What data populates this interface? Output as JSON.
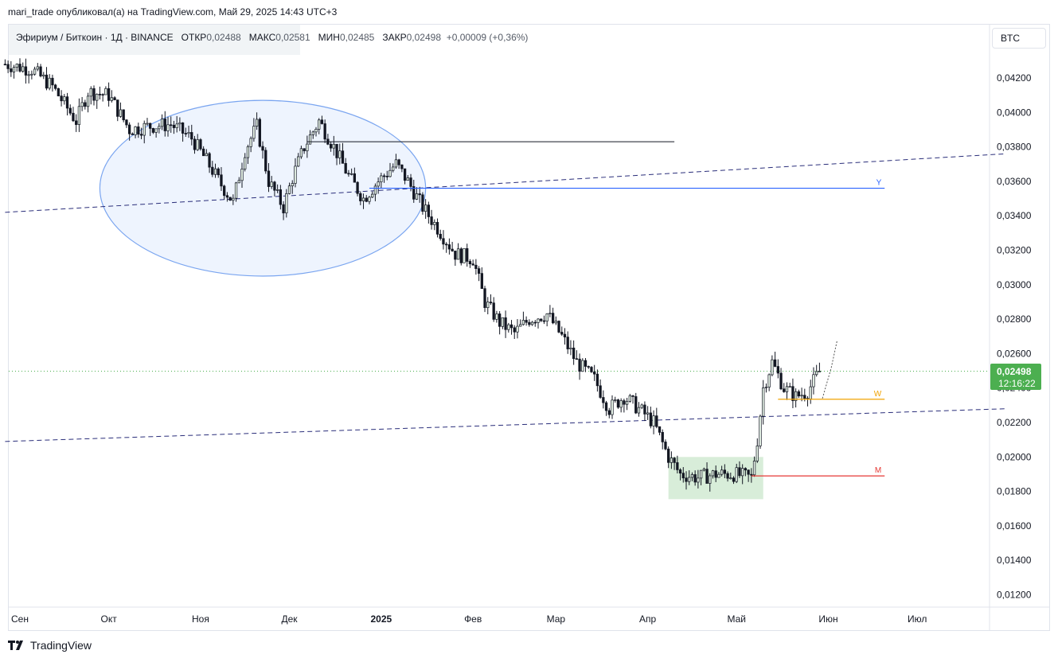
{
  "header": {
    "publisher": "mari_trade опубликовал(а) на TradingView.com, Май 29, 2025 14:43 UTC+3"
  },
  "legend": {
    "symbol": "Эфириум / Биткоин · 1Д · BINANCE",
    "open_label": "ОТКР",
    "open": "0,02488",
    "high_label": "МАКС",
    "high": "0,02581",
    "low_label": "МИН",
    "low": "0,02485",
    "close_label": "ЗАКР",
    "close": "0,02498",
    "change": "+0,00009 (+0,36%)"
  },
  "currency_button": "BTC",
  "last_price": {
    "price": "0,02498",
    "countdown": "12:16:22"
  },
  "footer": {
    "brand": "TradingView"
  },
  "colors": {
    "up": "#26a69a",
    "candle": "#131722",
    "accent_green": "#4caf50",
    "ellipse": "#2962ff",
    "zone": "#c8e6c9",
    "line_y": "#2962ff",
    "line_w": "#f0a202",
    "line_m": "#e53935",
    "trend": "#2a2e7a"
  },
  "chart_data": {
    "type": "candlestick",
    "symbol": "ETHBTC",
    "timeframe": "1D",
    "x_ticks": [
      {
        "label": "Сен",
        "date": "2024-09-01"
      },
      {
        "label": "Окт",
        "date": "2024-10-01"
      },
      {
        "label": "Ноя",
        "date": "2024-11-01"
      },
      {
        "label": "Дек",
        "date": "2024-12-01"
      },
      {
        "label": "2025",
        "date": "2025-01-01",
        "bold": true
      },
      {
        "label": "Фев",
        "date": "2025-02-01"
      },
      {
        "label": "Мар",
        "date": "2025-03-01"
      },
      {
        "label": "Апр",
        "date": "2025-04-01"
      },
      {
        "label": "Май",
        "date": "2025-05-01"
      },
      {
        "label": "Июн",
        "date": "2025-06-01"
      },
      {
        "label": "Июл",
        "date": "2025-07-01"
      }
    ],
    "y_ticks": [
      "0,04200",
      "0,04000",
      "0,03800",
      "0,03600",
      "0,03400",
      "0,03200",
      "0,03000",
      "0,02800",
      "0,02600",
      "0,02400",
      "0,02200",
      "0,02000",
      "0,01800",
      "0,01600",
      "0,01400",
      "0,01200"
    ],
    "y_tick_values": [
      0.042,
      0.04,
      0.038,
      0.036,
      0.034,
      0.032,
      0.03,
      0.028,
      0.026,
      0.024,
      0.022,
      0.02,
      0.018,
      0.016,
      0.014,
      0.012
    ],
    "close_path": [
      [
        "2024-08-27",
        0.0428
      ],
      [
        "2024-09-05",
        0.0425
      ],
      [
        "2024-09-12",
        0.0415
      ],
      [
        "2024-09-20",
        0.0395
      ],
      [
        "2024-09-24",
        0.0412
      ],
      [
        "2024-10-01",
        0.041
      ],
      [
        "2024-10-08",
        0.039
      ],
      [
        "2024-10-15",
        0.0392
      ],
      [
        "2024-10-22",
        0.0393
      ],
      [
        "2024-10-29",
        0.0385
      ],
      [
        "2024-11-03",
        0.0372
      ],
      [
        "2024-11-08",
        0.0358
      ],
      [
        "2024-11-12",
        0.0348
      ],
      [
        "2024-11-16",
        0.0378
      ],
      [
        "2024-11-20",
        0.0392
      ],
      [
        "2024-11-24",
        0.036
      ],
      [
        "2024-11-29",
        0.0345
      ],
      [
        "2024-12-02",
        0.0362
      ],
      [
        "2024-12-06",
        0.038
      ],
      [
        "2024-12-11",
        0.0395
      ],
      [
        "2024-12-16",
        0.038
      ],
      [
        "2024-12-21",
        0.0363
      ],
      [
        "2024-12-26",
        0.035
      ],
      [
        "2024-12-31",
        0.036
      ],
      [
        "2025-01-06",
        0.037
      ],
      [
        "2025-01-10",
        0.036
      ],
      [
        "2025-01-15",
        0.0345
      ],
      [
        "2025-01-20",
        0.0333
      ],
      [
        "2025-01-26",
        0.0318
      ],
      [
        "2025-02-01",
        0.0315
      ],
      [
        "2025-02-05",
        0.029
      ],
      [
        "2025-02-10",
        0.0278
      ],
      [
        "2025-02-15",
        0.0272
      ],
      [
        "2025-02-20",
        0.028
      ],
      [
        "2025-02-26",
        0.0283
      ],
      [
        "2025-03-03",
        0.027
      ],
      [
        "2025-03-08",
        0.0255
      ],
      [
        "2025-03-14",
        0.0245
      ],
      [
        "2025-03-19",
        0.0228
      ],
      [
        "2025-03-24",
        0.0235
      ],
      [
        "2025-03-29",
        0.0228
      ],
      [
        "2025-04-03",
        0.022
      ],
      [
        "2025-04-08",
        0.02
      ],
      [
        "2025-04-12",
        0.019
      ],
      [
        "2025-04-18",
        0.0188
      ],
      [
        "2025-04-24",
        0.019
      ],
      [
        "2025-04-30",
        0.019
      ],
      [
        "2025-05-06",
        0.0188
      ],
      [
        "2025-05-08",
        0.021
      ],
      [
        "2025-05-10",
        0.024
      ],
      [
        "2025-05-13",
        0.0255
      ],
      [
        "2025-05-17",
        0.024
      ],
      [
        "2025-05-21",
        0.0235
      ],
      [
        "2025-05-25",
        0.0238
      ],
      [
        "2025-05-29",
        0.02498
      ]
    ],
    "drawings": {
      "ellipse": {
        "center": [
          "2024-11-22",
          0.0356
        ],
        "rx_days": 55,
        "ry": 0.0051
      },
      "hline_black": {
        "from": "2024-12-07",
        "to": "2025-04-10",
        "y": 0.0383
      },
      "hline_Y": {
        "label": "Y",
        "from": "2024-12-28",
        "to": "2025-06-20",
        "y": 0.0356
      },
      "hline_W": {
        "label": "W",
        "from": "2025-05-15",
        "to": "2025-06-20",
        "y": 0.02335
      },
      "hline_M": {
        "label": "M",
        "from": "2025-05-06",
        "to": "2025-06-20",
        "y": 0.0189
      },
      "zone": {
        "from": "2025-04-08",
        "to": "2025-05-10",
        "top": 0.02,
        "bottom": 0.01755
      },
      "trend_upper": {
        "from": [
          "2024-08-27",
          0.0342
        ],
        "to": [
          "2025-07-31",
          0.0376
        ]
      },
      "trend_lower": {
        "from": [
          "2024-08-27",
          0.0209
        ],
        "to": [
          "2025-07-31",
          0.0228
        ]
      },
      "projection": [
        [
          "2025-05-30",
          0.0234
        ],
        [
          "2025-06-02",
          0.0252
        ],
        [
          "2025-06-04",
          0.0268
        ]
      ]
    }
  }
}
